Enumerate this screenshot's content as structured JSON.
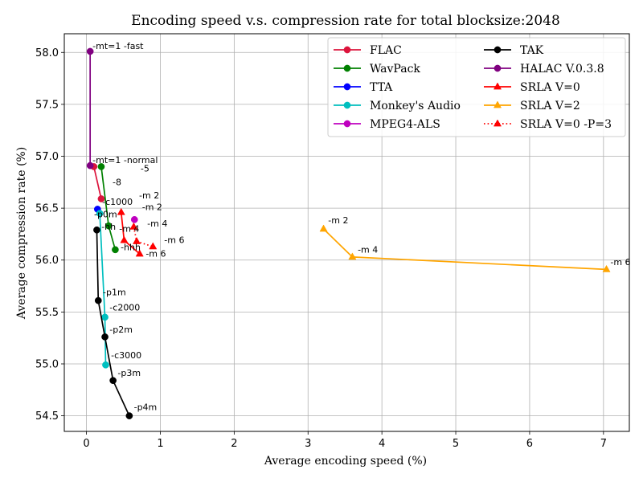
{
  "chart_data": {
    "type": "line",
    "title": "Encoding speed v.s. compression rate for total blocksize:2048",
    "xlabel": "Average encoding speed (%)",
    "ylabel": "Average compression rate (%)",
    "xlim": [
      -0.3,
      7.35
    ],
    "ylim": [
      54.35,
      58.18
    ],
    "xticks": [
      0,
      1,
      2,
      3,
      4,
      5,
      6,
      7
    ],
    "xtick_labels": [
      "0",
      "1",
      "2",
      "3",
      "4",
      "5",
      "6",
      "7"
    ],
    "yticks": [
      54.5,
      55.0,
      55.5,
      56.0,
      56.5,
      57.0,
      57.5,
      58.0
    ],
    "ytick_labels": [
      "54.5",
      "55.0",
      "55.5",
      "56.0",
      "56.5",
      "57.0",
      "57.5",
      "58.0"
    ],
    "grid": true,
    "legend_position": "top-right",
    "series": [
      {
        "name": "FLAC",
        "color": "#dc143c",
        "marker": "circle",
        "line": "solid",
        "x": [
          0.1,
          0.2
        ],
        "y": [
          56.9,
          56.59
        ]
      },
      {
        "name": "WavPack",
        "color": "#008000",
        "marker": "circle",
        "line": "solid",
        "x": [
          0.2,
          0.3,
          0.39
        ],
        "y": [
          56.9,
          56.33,
          56.1
        ]
      },
      {
        "name": "TTA",
        "color": "#0000ff",
        "marker": "circle",
        "line": "solid",
        "x": [
          0.15
        ],
        "y": [
          56.49
        ]
      },
      {
        "name": "Monkey's Audio",
        "color": "#00bfbf",
        "marker": "circle",
        "line": "solid",
        "x": [
          0.18,
          0.25,
          0.26
        ],
        "y": [
          56.45,
          55.45,
          54.99
        ]
      },
      {
        "name": "MPEG4-ALS",
        "color": "#bf00bf",
        "marker": "circle",
        "line": "solid",
        "x": [
          0.65
        ],
        "y": [
          56.39
        ]
      },
      {
        "name": "TAK",
        "color": "#000000",
        "marker": "circle",
        "line": "solid",
        "x": [
          0.14,
          0.16,
          0.25,
          0.36,
          0.58
        ],
        "y": [
          56.29,
          55.61,
          55.26,
          54.84,
          54.5
        ]
      },
      {
        "name": "HALAC V.0.3.8",
        "color": "#800080",
        "marker": "circle",
        "line": "solid",
        "x": [
          0.05,
          0.05
        ],
        "y": [
          58.01,
          56.91
        ]
      },
      {
        "name": "SRLA V=0",
        "color": "#ff0000",
        "marker": "triangle",
        "line": "solid",
        "x": [
          0.47,
          0.51,
          0.72
        ],
        "y": [
          56.46,
          56.19,
          56.06
        ]
      },
      {
        "name": "SRLA V=2",
        "color": "#ffa500",
        "marker": "triangle",
        "line": "solid",
        "x": [
          3.21,
          3.6,
          7.04
        ],
        "y": [
          56.3,
          56.03,
          55.91
        ]
      },
      {
        "name": "SRLA V=0 -P=3",
        "color": "#ff0000",
        "marker": "triangle",
        "line": "dotted",
        "x": [
          0.64,
          0.68,
          0.9
        ],
        "y": [
          56.32,
          56.18,
          56.13
        ]
      }
    ],
    "annotations": [
      {
        "text": "-mt=1 -fast",
        "x": 0.05,
        "y": 58.01
      },
      {
        "text": "-mt=1 -normal",
        "x": 0.05,
        "y": 56.91
      },
      {
        "text": "-5",
        "x": 0.7,
        "y": 56.83
      },
      {
        "text": "-8",
        "x": 0.32,
        "y": 56.7
      },
      {
        "text": "-c1000",
        "x": 0.18,
        "y": 56.51
      },
      {
        "text": "-m 2",
        "x": 0.68,
        "y": 56.57
      },
      {
        "text": "-m 2",
        "x": 0.72,
        "y": 56.46
      },
      {
        "text": "-p0m",
        "x": 0.07,
        "y": 56.39
      },
      {
        "text": "-m 4",
        "x": 0.79,
        "y": 56.3
      },
      {
        "text": "-hh",
        "x": 0.17,
        "y": 56.27
      },
      {
        "text": "-m 4",
        "x": 0.41,
        "y": 56.25
      },
      {
        "text": "-m 6",
        "x": 1.02,
        "y": 56.14
      },
      {
        "text": "-hhh",
        "x": 0.43,
        "y": 56.07
      },
      {
        "text": "-m 6",
        "x": 0.77,
        "y": 56.01
      },
      {
        "text": "-m 2",
        "x": 3.24,
        "y": 56.33
      },
      {
        "text": "-m 4",
        "x": 3.64,
        "y": 56.05
      },
      {
        "text": "-m 6",
        "x": 7.06,
        "y": 55.93
      },
      {
        "text": "-p1m",
        "x": 0.19,
        "y": 55.64
      },
      {
        "text": "-c2000",
        "x": 0.28,
        "y": 55.49
      },
      {
        "text": "-p2m",
        "x": 0.28,
        "y": 55.28
      },
      {
        "text": "-c3000",
        "x": 0.3,
        "y": 55.03
      },
      {
        "text": "-p3m",
        "x": 0.39,
        "y": 54.86
      },
      {
        "text": "-p4m",
        "x": 0.61,
        "y": 54.53
      }
    ]
  }
}
